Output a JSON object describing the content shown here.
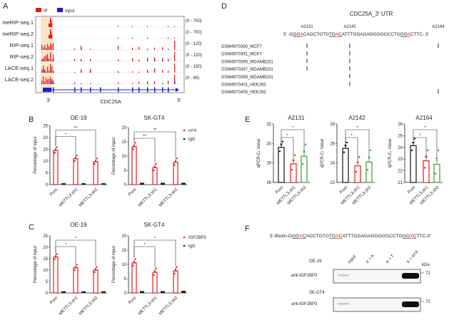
{
  "panel_labels": [
    "A",
    "B",
    "C",
    "D",
    "E",
    "F"
  ],
  "panelA": {
    "legend": [
      {
        "label": "IP",
        "color": "#e41a1c"
      },
      {
        "label": "Input",
        "color": "#1f1fd0"
      }
    ],
    "tracks": [
      {
        "label": "meRIP-seq.1",
        "range": "(0 - 700)"
      },
      {
        "label": "meRIP-seq.2",
        "range": "(0 - 700)"
      },
      {
        "label": "RIP-seq.1",
        "range": "(0 - 120)"
      },
      {
        "label": "RIP-seq.2",
        "range": "(0 - 120)"
      },
      {
        "label": "LACE-seq.1",
        "range": "(0 - 150)"
      },
      {
        "label": "LACE-seq.2",
        "range": "(0 - 80)"
      }
    ],
    "gene": "CDC25A",
    "left_end": "3'",
    "right_end": "5'",
    "highlight_color": "#fbe3c8"
  },
  "panelD": {
    "title": "CDC25A_3' UTR",
    "sites": [
      "A2131",
      "A2142",
      "A2164"
    ],
    "sequence": [
      {
        "t": "5' -G",
        "u": false,
        "r": false
      },
      {
        "t": "GG",
        "u": true,
        "r": false
      },
      {
        "t": "A",
        "u": true,
        "r": true
      },
      {
        "t": "CAGCTGTG",
        "u": false,
        "r": false
      },
      {
        "t": "TG",
        "u": true,
        "r": false
      },
      {
        "t": "A",
        "u": true,
        "r": true
      },
      {
        "t": "C",
        "u": true,
        "r": false
      },
      {
        "t": "ATTTGGAGAGGGGGCCTG",
        "u": false,
        "r": false
      },
      {
        "t": "GG",
        "u": true,
        "r": false
      },
      {
        "t": "A",
        "u": true,
        "r": true
      },
      {
        "t": "CTTC- 3'",
        "u": false,
        "r": false
      }
    ],
    "samples": [
      {
        "name": "GSM4970390_MCF7",
        "hits": [
          true,
          true,
          true
        ]
      },
      {
        "name": "GSM4970391_MCF7",
        "hits": [
          true,
          true,
          false
        ]
      },
      {
        "name": "GSM4970395_MDAMB231",
        "hits": [
          true,
          true,
          false
        ]
      },
      {
        "name": "GSM4970397_MDAMB231",
        "hits": [
          true,
          true,
          false
        ]
      },
      {
        "name": "GSM4970399_MDAMB231",
        "hits": [
          false,
          true,
          false
        ]
      },
      {
        "name": "GSM4970401_HEK293",
        "hits": [
          false,
          true,
          false
        ]
      },
      {
        "name": "GSM4970405_HEK293",
        "hits": [
          false,
          false,
          true
        ]
      }
    ]
  },
  "panelF": {
    "probe": [
      {
        "t": "5'-Biotin-G",
        "u": false,
        "r": false
      },
      {
        "t": "GG",
        "u": true,
        "r": false
      },
      {
        "t": "X",
        "u": true,
        "r": true
      },
      {
        "t": "C",
        "u": true,
        "r": false
      },
      {
        "t": "AGCTGTG",
        "u": false,
        "r": false
      },
      {
        "t": "TG",
        "u": true,
        "r": false
      },
      {
        "t": "X",
        "u": true,
        "r": true
      },
      {
        "t": "C",
        "u": true,
        "r": false
      },
      {
        "t": "ATTTGGAGAGGGGGCCTG",
        "u": false,
        "r": false
      },
      {
        "t": "GG",
        "u": true,
        "r": false
      },
      {
        "t": "X",
        "u": true,
        "r": true
      },
      {
        "t": "C",
        "u": true,
        "r": false
      },
      {
        "t": "TTC-3'",
        "u": false,
        "r": false
      }
    ],
    "lanes": [
      "Input",
      "X = A",
      "X = T",
      "X = m⁶A"
    ],
    "kda_label": "kDa",
    "blots": [
      {
        "cell": "OE-19",
        "antibody": "anti-IGF2BP3",
        "marker": "72"
      },
      {
        "cell": "SK-GT4",
        "antibody": "anti-IGF2BP3",
        "marker": "72"
      }
    ]
  },
  "chart_data": [
    {
      "panel": "B",
      "type": "bar",
      "title": "OE-19",
      "ylabel": "Percentage of input",
      "ylim": [
        0,
        25
      ],
      "yticks": [
        0,
        5,
        10,
        15,
        20,
        25
      ],
      "categories": [
        "Puro",
        "METTL3.sh1",
        "METTL3.sh2"
      ],
      "series": [
        {
          "name": "m⁶A",
          "color": "#e41a1c",
          "values": [
            14.5,
            11.0,
            9.7
          ]
        },
        {
          "name": "IgG",
          "color": "#111111",
          "values": [
            0.2,
            0.2,
            0.2
          ]
        }
      ],
      "significance": [
        {
          "vs": 1,
          "label": "*"
        },
        {
          "vs": 2,
          "label": "**"
        }
      ]
    },
    {
      "panel": "B",
      "type": "bar",
      "title": "SK-GT4",
      "ylabel": "Percentage of input",
      "ylim": [
        0,
        20
      ],
      "yticks": [
        0,
        5,
        10,
        15,
        20
      ],
      "categories": [
        "Puro",
        "METTL3.sh1",
        "METTL3.sh2"
      ],
      "series": [
        {
          "name": "m⁶A",
          "color": "#e41a1c",
          "values": [
            13.3,
            5.9,
            7.8
          ]
        },
        {
          "name": "IgG",
          "color": "#111111",
          "values": [
            0.3,
            0.3,
            0.3
          ]
        }
      ],
      "significance": [
        {
          "vs": 1,
          "label": "**"
        },
        {
          "vs": 2,
          "label": "**"
        }
      ],
      "legend": "right"
    },
    {
      "panel": "C",
      "type": "bar",
      "title": "OE-19",
      "ylabel": "Percentage of input",
      "ylim": [
        0,
        25
      ],
      "yticks": [
        0,
        5,
        10,
        15,
        20,
        25
      ],
      "categories": [
        "Puro",
        "METTL3.sh1",
        "METTL3.sh2"
      ],
      "series": [
        {
          "name": "IGF2BP3",
          "color": "#e41a1c",
          "values": [
            15.7,
            11.0,
            10.0
          ]
        },
        {
          "name": "IgG",
          "color": "#111111",
          "values": [
            0.3,
            0.3,
            0.3
          ]
        }
      ],
      "significance": [
        {
          "vs": 1,
          "label": "*"
        },
        {
          "vs": 2,
          "label": "*"
        }
      ]
    },
    {
      "panel": "C",
      "type": "bar",
      "title": "SK-GT4",
      "ylabel": "Percentage of input",
      "ylim": [
        0,
        20
      ],
      "yticks": [
        0,
        5,
        10,
        15,
        20
      ],
      "categories": [
        "Puro",
        "METTL3.sh1",
        "METTL3.sh2"
      ],
      "series": [
        {
          "name": "IGF2BP3",
          "color": "#e41a1c",
          "values": [
            10.5,
            7.2,
            7.7
          ]
        },
        {
          "name": "IgG",
          "color": "#111111",
          "values": [
            0.3,
            0.3,
            0.4
          ]
        }
      ],
      "significance": [
        {
          "vs": 1,
          "label": "*"
        },
        {
          "vs": 2,
          "label": "*"
        }
      ],
      "legend": "right"
    },
    {
      "panel": "E",
      "type": "bar",
      "title": "A2131",
      "ylabel": "qPCR-Cₜ Value",
      "ylim": [
        26,
        32
      ],
      "yticks": [
        26,
        28,
        30,
        32
      ],
      "categories": [
        "Puro",
        "METTL3.sh1",
        "METTL3.sh2"
      ],
      "colors": [
        "#111111",
        "#e41a1c",
        "#2ca02c"
      ],
      "values": [
        29.6,
        27.9,
        28.7
      ],
      "significance": [
        {
          "vs": 1,
          "label": "*"
        },
        {
          "vs": 2,
          "label": "*"
        }
      ]
    },
    {
      "panel": "E",
      "type": "bar",
      "title": "A2142",
      "ylabel": "qPCR-Cₜ Value",
      "ylim": [
        22,
        28
      ],
      "yticks": [
        22,
        24,
        26,
        28
      ],
      "categories": [
        "Puro",
        "METTL3.sh1",
        "METTL3.sh2"
      ],
      "colors": [
        "#111111",
        "#e41a1c",
        "#2ca02c"
      ],
      "values": [
        25.5,
        23.7,
        24.1
      ],
      "significance": [
        {
          "vs": 1,
          "label": "*"
        },
        {
          "vs": 2,
          "label": "*"
        }
      ]
    },
    {
      "panel": "E",
      "type": "bar",
      "title": "A2164",
      "ylabel": "qPCR-Cₜ Value",
      "ylim": [
        21,
        26
      ],
      "yticks": [
        21,
        22,
        23,
        24,
        25,
        26
      ],
      "categories": [
        "Puro",
        "METTL3.sh1",
        "METTL3.sh2"
      ],
      "colors": [
        "#111111",
        "#e41a1c",
        "#2ca02c"
      ],
      "values": [
        24.15,
        22.85,
        22.55
      ],
      "significance": [
        {
          "vs": 1,
          "label": "*"
        },
        {
          "vs": 2,
          "label": "*"
        }
      ]
    }
  ]
}
